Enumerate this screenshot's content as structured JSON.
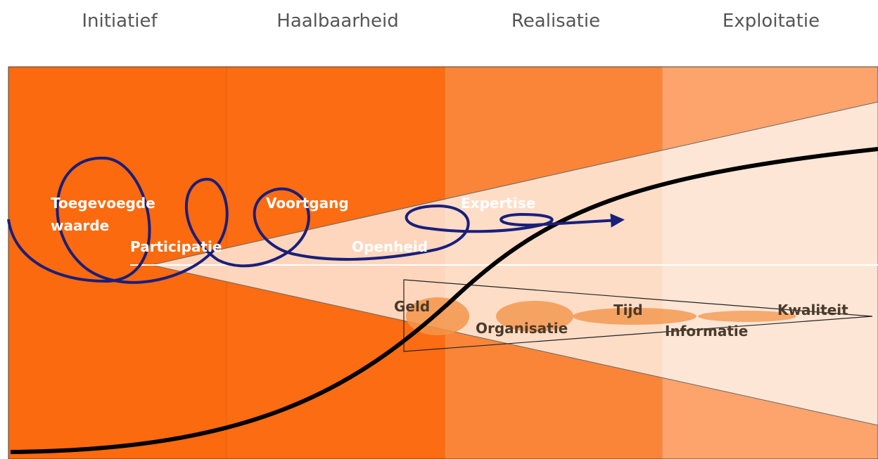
{
  "phases": [
    "Initiatief",
    "Haalbaarheid",
    "Realisatie",
    "Exploitatie"
  ],
  "process_labels": [
    "Toegevoegde",
    "waarde",
    "Participatie",
    "Voortgang",
    "Openheid",
    "Expertise"
  ],
  "resource_labels": [
    "Geld",
    "Organisatie",
    "Tijd",
    "Informatie",
    "Kwaliteit"
  ]
}
